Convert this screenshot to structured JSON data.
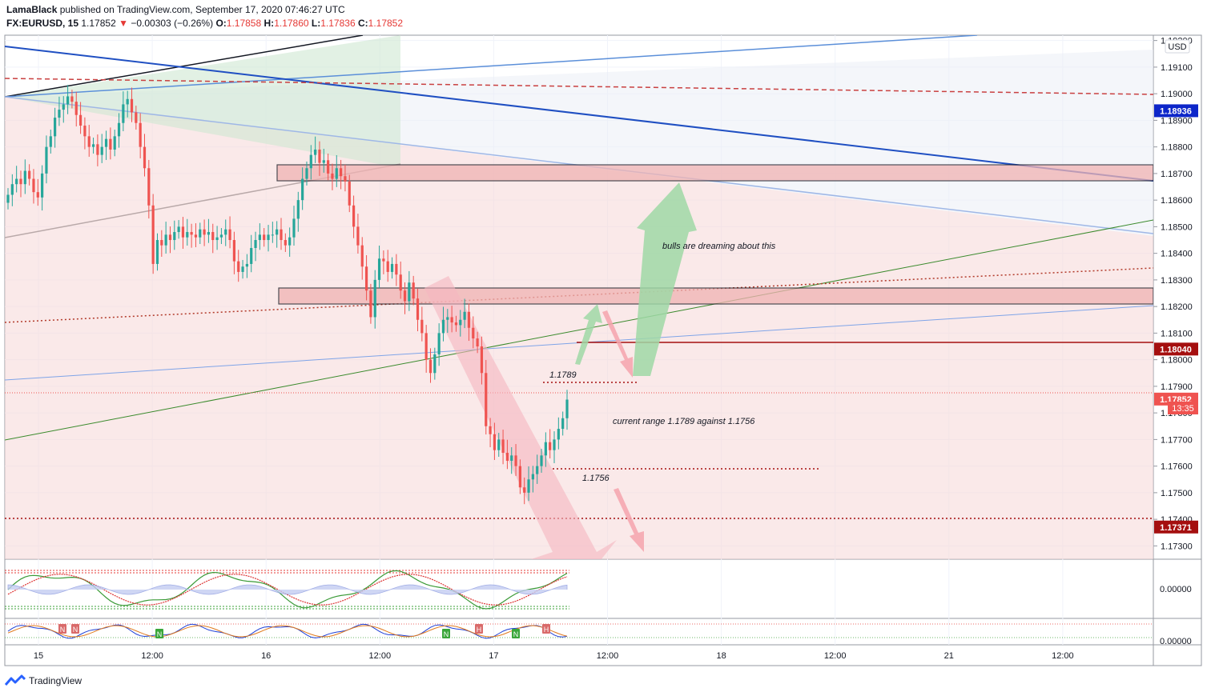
{
  "header": {
    "author": "LamaBlack",
    "published": "published on TradingView.com, September 17, 2020 07:46:27 UTC",
    "symbol": "FX:EURUSD, 15",
    "last": "1.17852",
    "change_arrow": "▼",
    "change": "−0.00303 (−0.26%)",
    "o_label": "O:",
    "o_val": "1.17858",
    "h_label": "H:",
    "h_val": "1.17860",
    "l_label": "L:",
    "l_val": "1.17836",
    "c_label": "C:",
    "c_val": "1.17852"
  },
  "footer": {
    "brand": "TradingView",
    "logo_icon": "tradingview-logo-icon"
  },
  "chart_data": {
    "type": "candlestick",
    "symbol": "EURUSD",
    "timeframe": "15",
    "currency": "USD",
    "ylim": [
      1.1725,
      1.1922
    ],
    "y_ticks": [
      "1.19200",
      "1.19100",
      "1.19000",
      "1.18900",
      "1.18800",
      "1.18700",
      "1.18600",
      "1.18500",
      "1.18400",
      "1.18300",
      "1.18200",
      "1.18100",
      "1.18000",
      "1.17900",
      "1.17800",
      "1.17700",
      "1.17600",
      "1.17500",
      "1.17400",
      "1.17300"
    ],
    "x_ticks": [
      "15",
      "12:00",
      "16",
      "12:00",
      "17",
      "12:00",
      "18",
      "12:00",
      "21",
      "12:00"
    ],
    "price_badges": [
      {
        "value": 1.18936,
        "label": "1.18936",
        "color": "#0d26c9"
      },
      {
        "value": 1.1804,
        "label": "1.18040",
        "color": "#a50f0f"
      },
      {
        "value": 1.17852,
        "label": "1.17852",
        "color": "#ef5350"
      },
      {
        "value": 1.17371,
        "label": "1.17371",
        "color": "#a50f0f"
      }
    ],
    "countdown": "13:35",
    "resistance_zones": [
      [
        1.1866,
        1.1872
      ],
      [
        1.1819,
        1.1825
      ]
    ],
    "levels": [
      {
        "value": 1.1789,
        "label": "1.1789"
      },
      {
        "value": 1.1756,
        "label": "1.1756"
      }
    ],
    "annotations": [
      "bulls are dreaming about this",
      "current range 1.1789 against 1.1756"
    ],
    "oscillator_1": {
      "zero_label": "0.00000"
    },
    "oscillator_2": {
      "zero_label": "0.00000",
      "signals": [
        "N",
        "N",
        "N",
        "N",
        "H",
        "N",
        "H"
      ]
    },
    "series": [
      {
        "name": "EURUSD",
        "close": [
          1.1862,
          1.1866,
          1.1868,
          1.1866,
          1.1871,
          1.1868,
          1.1863,
          1.1861,
          1.187,
          1.188,
          1.1884,
          1.1891,
          1.1894,
          1.1896,
          1.1899,
          1.1897,
          1.1892,
          1.1888,
          1.1884,
          1.188,
          1.1881,
          1.1877,
          1.188,
          1.1883,
          1.1879,
          1.1884,
          1.1889,
          1.1896,
          1.1898,
          1.1893,
          1.1889,
          1.188,
          1.1872,
          1.1858,
          1.1836,
          1.1845,
          1.1843,
          1.1847,
          1.1845,
          1.1848,
          1.185,
          1.1846,
          1.1848,
          1.1847,
          1.1846,
          1.1849,
          1.1847,
          1.1848,
          1.1845,
          1.1846,
          1.1847,
          1.1849,
          1.1845,
          1.1837,
          1.1833,
          1.1835,
          1.1836,
          1.1842,
          1.1845,
          1.1847,
          1.1845,
          1.1847,
          1.1847,
          1.1849,
          1.1845,
          1.1843,
          1.1846,
          1.1853,
          1.186,
          1.1868,
          1.1872,
          1.1877,
          1.1879,
          1.1874,
          1.1875,
          1.187,
          1.1868,
          1.1872,
          1.1869,
          1.1867,
          1.1858,
          1.185,
          1.1843,
          1.1835,
          1.1826,
          1.1816,
          1.183,
          1.1838,
          1.1837,
          1.1833,
          1.1836,
          1.1832,
          1.1826,
          1.1822,
          1.1829,
          1.1823,
          1.1815,
          1.181,
          1.18,
          1.1795,
          1.1802,
          1.181,
          1.1815,
          1.1816,
          1.1814,
          1.1813,
          1.1815,
          1.1818,
          1.1812,
          1.1808,
          1.1805,
          1.1795,
          1.1775,
          1.1772,
          1.1766,
          1.177,
          1.1765,
          1.1762,
          1.1764,
          1.176,
          1.1752,
          1.175,
          1.1755,
          1.1757,
          1.176,
          1.1764,
          1.1769,
          1.1766,
          1.177,
          1.1774,
          1.1778,
          1.1785
        ]
      }
    ]
  }
}
